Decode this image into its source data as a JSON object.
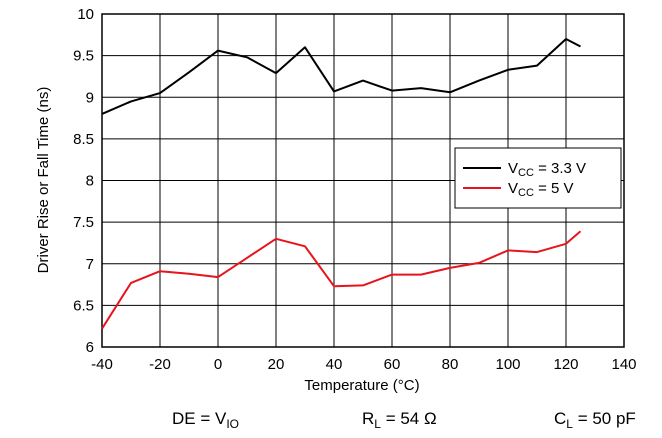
{
  "chart_data": {
    "type": "line",
    "xlabel": "Temperature (°C)",
    "ylabel": "Driver Rise or Fall Time (ns)",
    "xlim": [
      -40,
      140
    ],
    "ylim": [
      6,
      10
    ],
    "xticks": [
      "-40",
      "-20",
      "0",
      "20",
      "40",
      "60",
      "80",
      "100",
      "120",
      "140"
    ],
    "yticks": [
      "6",
      "6.5",
      "7",
      "7.5",
      "8",
      "8.5",
      "9",
      "9.5",
      "10"
    ],
    "grid": true,
    "legend_position": "right",
    "series": [
      {
        "name_main": "V",
        "name_sub": "CC",
        "name_rest": " = 3.3 V",
        "color": "#000000",
        "x": [
          -40,
          -30,
          -20,
          -10,
          0,
          10,
          20,
          30,
          40,
          50,
          60,
          70,
          80,
          90,
          100,
          110,
          120,
          125
        ],
        "y": [
          8.8,
          8.95,
          9.05,
          9.3,
          9.56,
          9.48,
          9.29,
          9.6,
          9.07,
          9.2,
          9.08,
          9.11,
          9.06,
          9.2,
          9.33,
          9.38,
          9.7,
          9.61
        ]
      },
      {
        "name_main": "V",
        "name_sub": "CC",
        "name_rest": " = 5 V",
        "color": "#e8141d",
        "x": [
          -40,
          -30,
          -20,
          -10,
          0,
          10,
          20,
          30,
          40,
          50,
          60,
          70,
          80,
          90,
          100,
          110,
          120,
          125
        ],
        "y": [
          6.22,
          6.77,
          6.91,
          6.88,
          6.84,
          7.07,
          7.3,
          7.21,
          6.73,
          6.74,
          6.87,
          6.87,
          6.95,
          7.01,
          7.16,
          7.14,
          7.24,
          7.39
        ]
      }
    ]
  },
  "conditions": [
    {
      "main": "DE = V",
      "sub": "IO",
      "rest": ""
    },
    {
      "main": "R",
      "sub": "L",
      "rest": " = 54 Ω"
    },
    {
      "main": "C",
      "sub": "L",
      "rest": " = 50 pF"
    }
  ]
}
